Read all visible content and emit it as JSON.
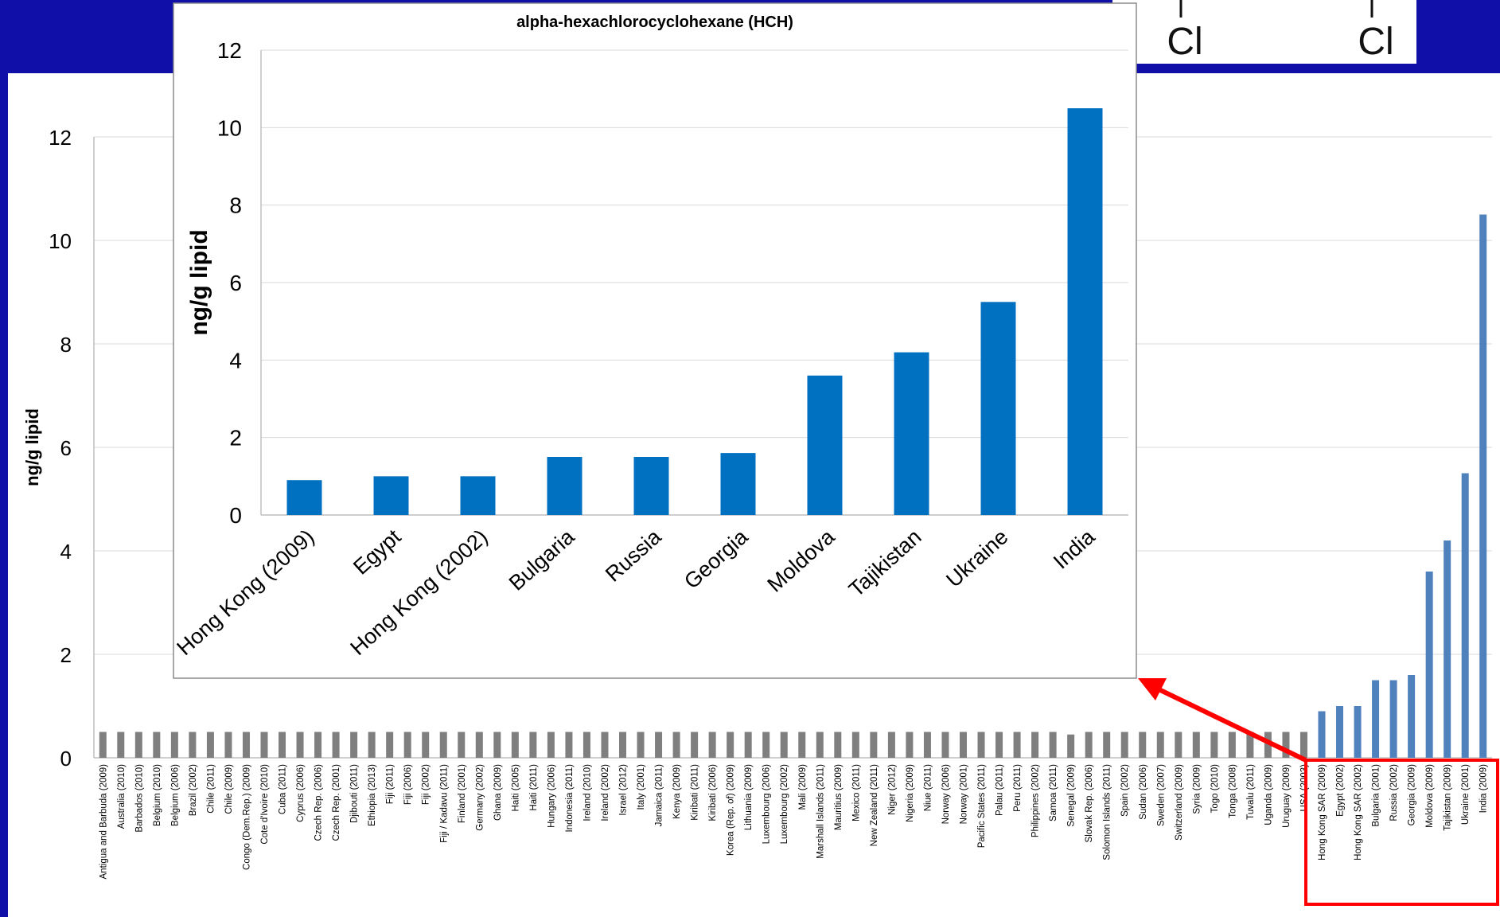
{
  "structure_labels": [
    "Cl",
    "Cl"
  ],
  "chart_data": [
    {
      "type": "bar",
      "title": "",
      "xlabel": "",
      "ylabel": "ng/g lipid",
      "ylim": [
        0,
        12
      ],
      "yticks": [
        0,
        2,
        4,
        6,
        8,
        10,
        12
      ],
      "grid": true,
      "legend": "none",
      "categories": [
        "Antigua and Barbuda (2009)",
        "Australia (2010)",
        "Barbados (2010)",
        "Belgium (2010)",
        "Belgium (2006)",
        "Brazil (2002)",
        "Chile (2011)",
        "Chile (2009)",
        "Congo (Dem.Rep.) (2009)",
        "Cote d'Ivoire (2010)",
        "Cuba (2011)",
        "Cyprus (2006)",
        "Czech Rep. (2006)",
        "Czech Rep. (2001)",
        "Djibouti (2011)",
        "Ethiopia (2013)",
        "Fiji (2011)",
        "Fiji (2006)",
        "Fiji (2002)",
        "Fiji / Kadavu (2011)",
        "Finland (2001)",
        "Germany (2002)",
        "Ghana (2009)",
        "Haiti (2005)",
        "Haiti (2011)",
        "Hungary (2006)",
        "Indonesia (2011)",
        "Ireland (2010)",
        "Ireland (2002)",
        "Israel (2012)",
        "Italy (2001)",
        "Jamaica (2011)",
        "Kenya (2009)",
        "Kiribati (2011)",
        "Kiribati (2006)",
        "Korea (Rep. of) (2009)",
        "Lithuania (2009)",
        "Luxembourg (2006)",
        "Luxembourg (2002)",
        "Mali (2009)",
        "Marshall Islands (2011)",
        "Mauritius (2009)",
        "Mexico (2011)",
        "New Zealand (2011)",
        "Niger (2012)",
        "Nigeria (2009)",
        "Niue (2011)",
        "Norway (2006)",
        "Norway (2001)",
        "Pacific States (2011)",
        "Palau (2011)",
        "Peru (2011)",
        "Philippines (2002)",
        "Samoa (2011)",
        "Senegal (2009)",
        "Slovak Rep. (2006)",
        "Solomon Islands (2011)",
        "Spain (2002)",
        "Sudan (2006)",
        "Sweden (2007)",
        "Switzerland (2009)",
        "Syria (2009)",
        "Togo (2010)",
        "Tonga (2008)",
        "Tuvalu (2011)",
        "Uganda (2009)",
        "Uruguay (2009)",
        "USA (2003)",
        "Hong Kong SAR (2009)",
        "Egypt (2002)",
        "Hong Kong SAR (2002)",
        "Bulgaria (2001)",
        "Russia (2002)",
        "Georgia (2009)",
        "Moldova (2009)",
        "Tajikistan (2009)",
        "Ukraine (2001)",
        "India (2009)"
      ],
      "values": [
        0.5,
        0.5,
        0.5,
        0.5,
        0.5,
        0.5,
        0.5,
        0.5,
        0.5,
        0.5,
        0.5,
        0.5,
        0.5,
        0.5,
        0.5,
        0.5,
        0.5,
        0.5,
        0.5,
        0.5,
        0.5,
        0.5,
        0.5,
        0.5,
        0.5,
        0.5,
        0.5,
        0.5,
        0.5,
        0.5,
        0.5,
        0.5,
        0.5,
        0.5,
        0.5,
        0.5,
        0.5,
        0.5,
        0.5,
        0.5,
        0.5,
        0.5,
        0.5,
        0.5,
        0.5,
        0.5,
        0.5,
        0.5,
        0.5,
        0.5,
        0.5,
        0.5,
        0.5,
        0.5,
        0.45,
        0.5,
        0.5,
        0.5,
        0.5,
        0.5,
        0.5,
        0.5,
        0.5,
        0.5,
        0.5,
        0.5,
        0.5,
        0.5,
        0.9,
        1.0,
        1.0,
        1.5,
        1.5,
        1.6,
        3.6,
        4.2,
        5.5,
        10.5
      ],
      "bar_colors": {
        "default": "#7f7f7f",
        "highlighted": "#4f81bd"
      },
      "highlight_from": 68
    },
    {
      "type": "bar",
      "title": "alpha-hexachlorocyclohexane (HCH)",
      "xlabel": "",
      "ylabel": "ng/g lipid",
      "ylim": [
        0,
        12
      ],
      "yticks": [
        0,
        2,
        4,
        6,
        8,
        10,
        12
      ],
      "grid": true,
      "legend": "none",
      "categories": [
        "Hong Kong (2009)",
        "Egypt",
        "Hong Kong (2002)",
        "Bulgaria",
        "Russia",
        "Georgia",
        "Moldova",
        "Tajikistan",
        "Ukraine",
        "India"
      ],
      "values": [
        0.9,
        1.0,
        1.0,
        1.5,
        1.5,
        1.6,
        3.6,
        4.2,
        5.5,
        10.5
      ],
      "bar_color": "#0070c0"
    }
  ],
  "colors": {
    "background": "#1010a8",
    "panel": "#ffffff",
    "highlight_box": "#ff0000",
    "arrow": "#ff0000"
  }
}
